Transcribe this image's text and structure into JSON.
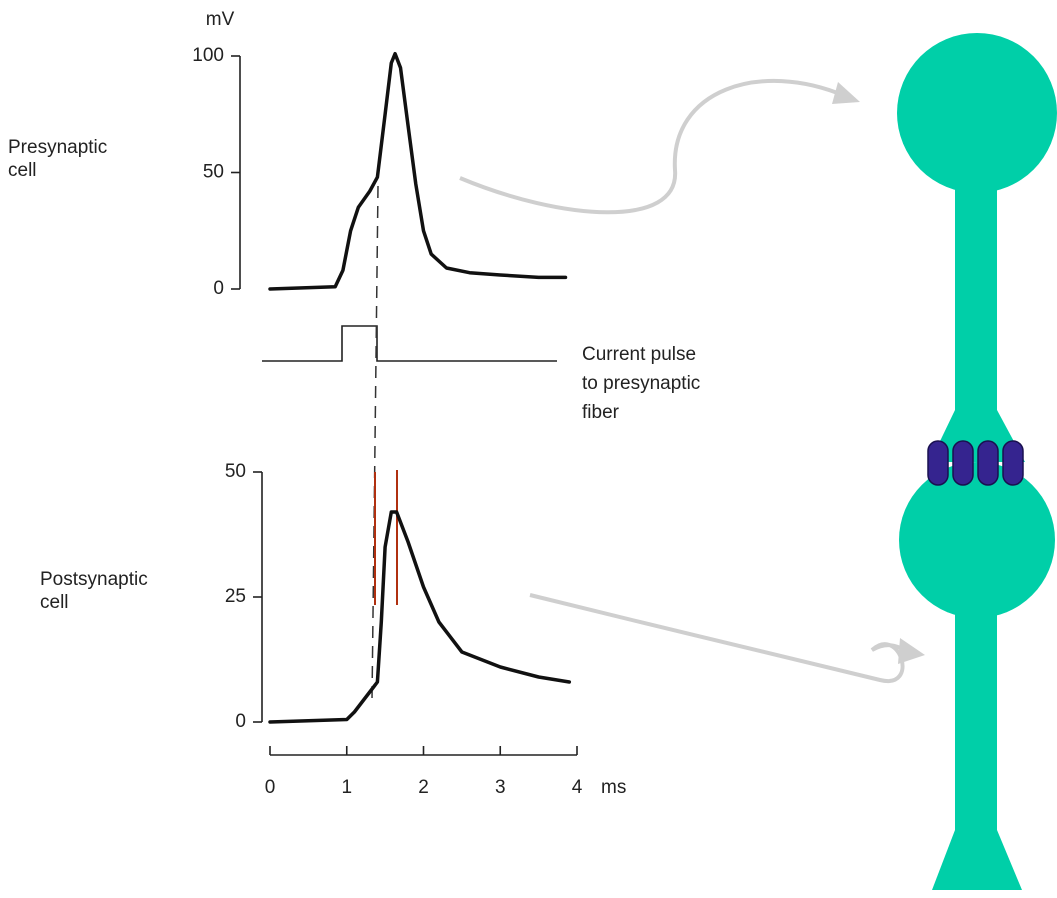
{
  "chart_data": [
    {
      "type": "line",
      "ylabel": "mV",
      "label": [
        "Presynaptic",
        "cell"
      ],
      "xlim": [
        0,
        4
      ],
      "ylim": [
        0,
        100
      ],
      "yticks": [
        0,
        50,
        100
      ],
      "x": [
        0,
        0.85,
        0.95,
        1.05,
        1.15,
        1.3,
        1.4,
        1.5,
        1.58,
        1.63,
        1.7,
        1.8,
        1.9,
        2.0,
        2.1,
        2.3,
        2.6,
        3,
        3.5,
        3.85
      ],
      "values": [
        0,
        1,
        8,
        25,
        35,
        42,
        48,
        75,
        97,
        101,
        95,
        70,
        45,
        25,
        15,
        9,
        7,
        6,
        5,
        5
      ]
    },
    {
      "type": "line",
      "label": [
        "Postsynaptic",
        "cell"
      ],
      "xlabel": "ms",
      "xlim": [
        0,
        4
      ],
      "ylim": [
        0,
        50
      ],
      "yticks": [
        0,
        25,
        50
      ],
      "xticks": [
        0,
        1,
        2,
        3,
        4
      ],
      "x": [
        0,
        1.0,
        1.1,
        1.25,
        1.35,
        1.4,
        1.45,
        1.5,
        1.58,
        1.65,
        1.8,
        2.0,
        2.2,
        2.5,
        3,
        3.5,
        3.9
      ],
      "values": [
        0,
        0.5,
        2,
        5,
        7,
        8,
        20,
        35,
        42,
        42,
        36,
        27,
        20,
        14,
        11,
        9,
        8
      ]
    }
  ],
  "annotation": [
    "Current pulse",
    "to presynaptic",
    "fiber"
  ]
}
